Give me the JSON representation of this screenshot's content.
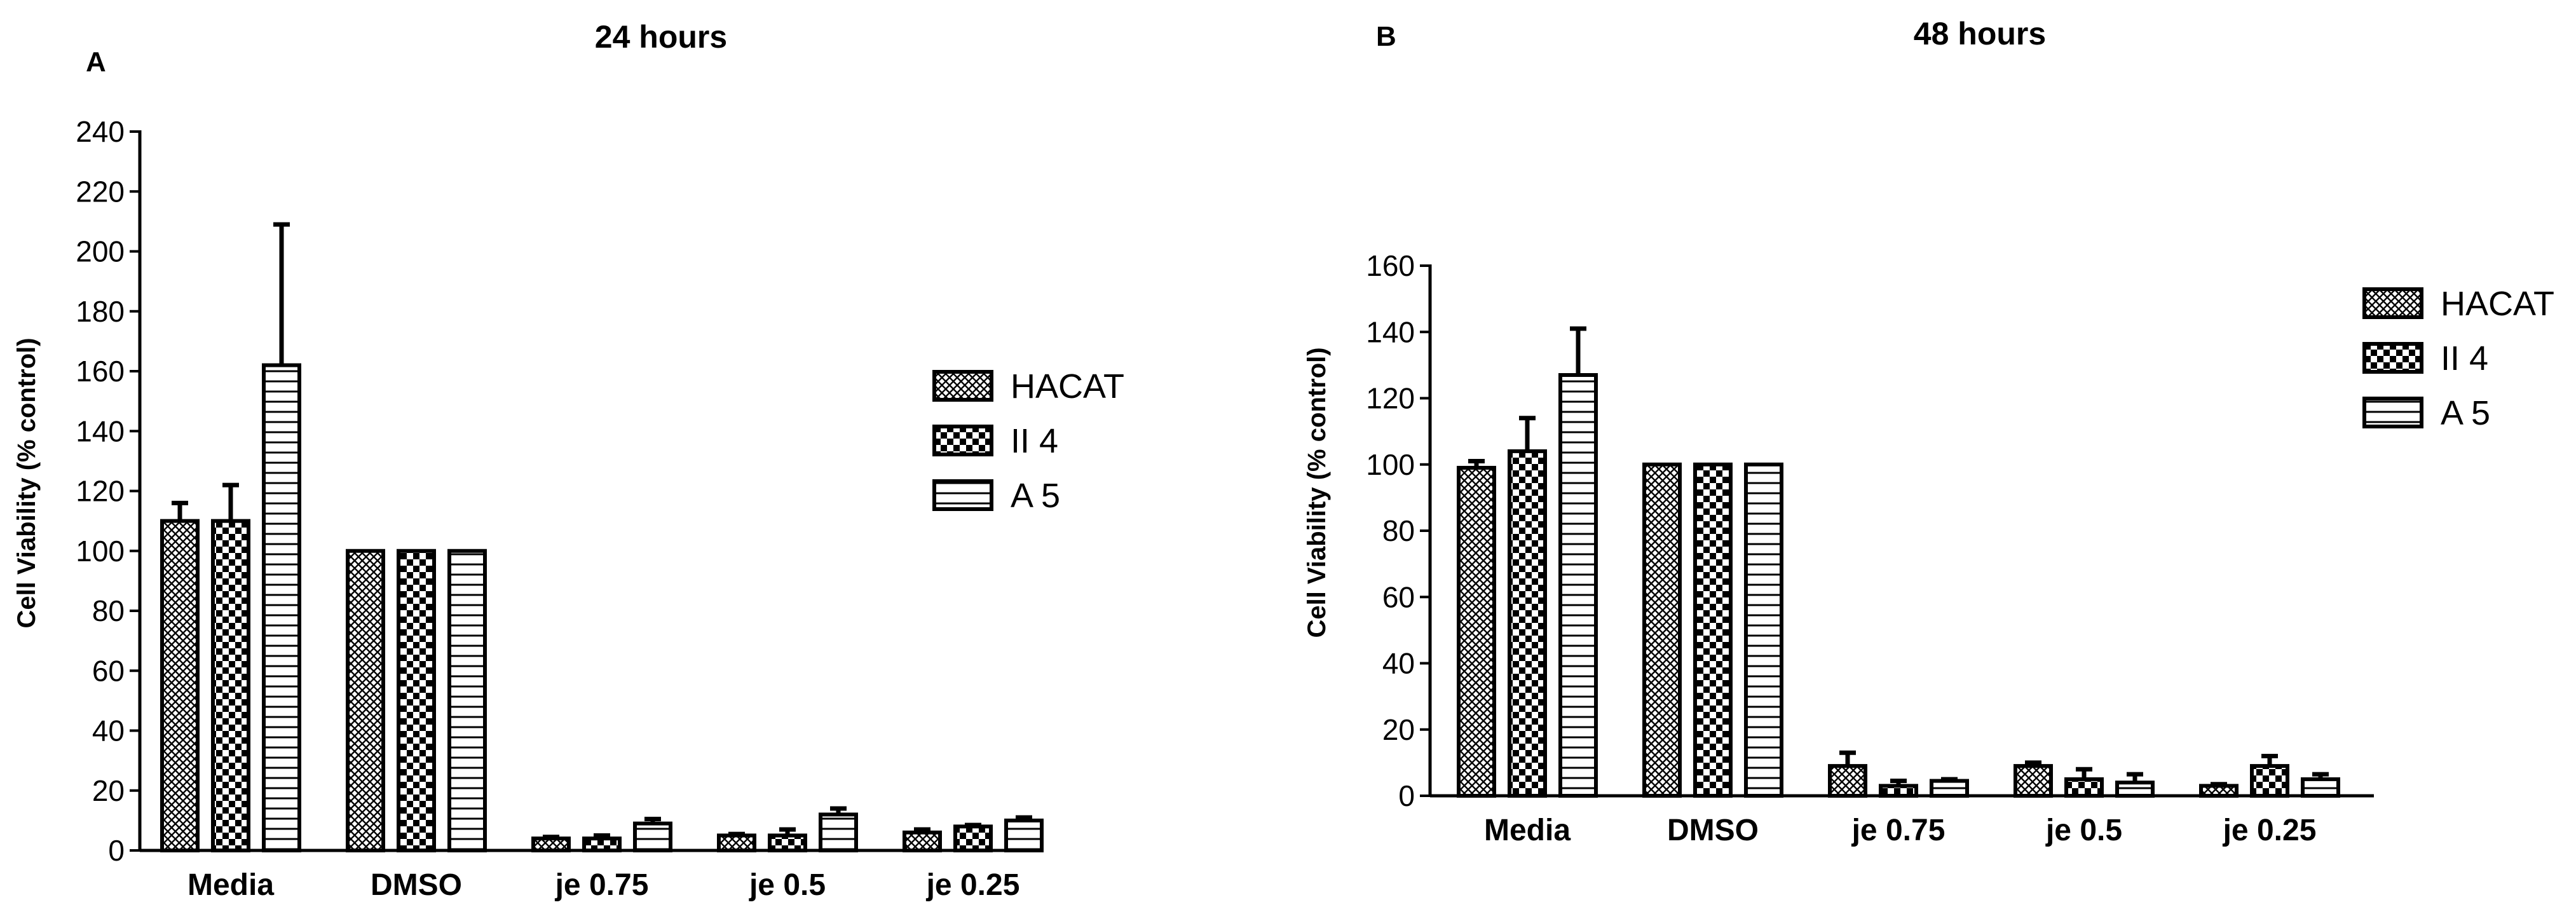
{
  "chart_data": [
    {
      "type": "bar",
      "panel": "A",
      "title": "24 hours",
      "xlabel": "",
      "ylabel": "Cell Viability (% control)",
      "ylim": [
        0,
        240
      ],
      "yticks": [
        0,
        20,
        40,
        60,
        80,
        100,
        120,
        140,
        160,
        180,
        200,
        220,
        240
      ],
      "categories": [
        "Media",
        "DMSO",
        "je 0.75",
        "je 0.5",
        "je 0.25"
      ],
      "series": [
        {
          "name": "HACAT",
          "pattern": "crosshatch",
          "values": [
            110,
            100,
            4,
            5,
            6
          ],
          "errors": [
            6,
            0,
            0.5,
            0.5,
            1
          ]
        },
        {
          "name": "II 4",
          "pattern": "checker",
          "values": [
            110,
            100,
            4,
            5,
            8
          ],
          "errors": [
            12,
            0,
            1,
            2,
            0.5
          ]
        },
        {
          "name": "A 5",
          "pattern": "hlines",
          "values": [
            162,
            100,
            9,
            12,
            10
          ],
          "errors": [
            47,
            0,
            1.5,
            2,
            1
          ]
        }
      ],
      "legend": "right",
      "grid": false
    },
    {
      "type": "bar",
      "panel": "B",
      "title": "48 hours",
      "xlabel": "",
      "ylabel": "Cell Viability (% control)",
      "ylim": [
        0,
        160
      ],
      "yticks": [
        0,
        20,
        40,
        60,
        80,
        100,
        120,
        140,
        160
      ],
      "categories": [
        "Media",
        "DMSO",
        "je 0.75",
        "je 0.5",
        "je 0.25"
      ],
      "series": [
        {
          "name": "HACAT",
          "pattern": "crosshatch",
          "values": [
            99,
            100,
            9,
            9,
            3
          ],
          "errors": [
            2,
            0,
            4,
            1,
            0.5
          ]
        },
        {
          "name": "II 4",
          "pattern": "checker",
          "values": [
            104,
            100,
            3,
            5,
            9
          ],
          "errors": [
            10,
            0,
            1.5,
            3,
            3
          ]
        },
        {
          "name": "A 5",
          "pattern": "hlines",
          "values": [
            127,
            100,
            4.5,
            4,
            5
          ],
          "errors": [
            14,
            0,
            0.5,
            2.5,
            1.5
          ]
        }
      ],
      "legend": "right",
      "grid": false
    }
  ]
}
